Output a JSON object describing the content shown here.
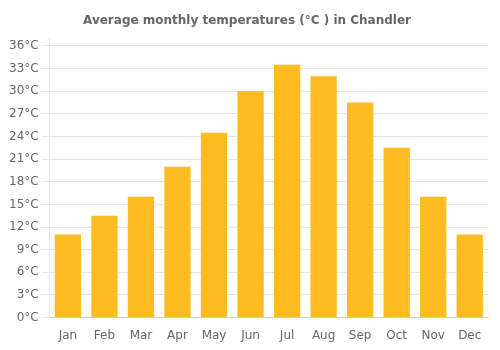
{
  "chart_data": {
    "type": "bar",
    "title": "Average monthly temperatures (°C ) in Chandler",
    "categories": [
      "Jan",
      "Feb",
      "Mar",
      "Apr",
      "May",
      "Jun",
      "Jul",
      "Aug",
      "Sep",
      "Oct",
      "Nov",
      "Dec"
    ],
    "values": [
      11,
      13.5,
      16,
      20,
      24.5,
      30,
      33.5,
      32,
      28.5,
      22.5,
      16,
      11
    ],
    "color": "#FFBB22",
    "ylim": [
      0,
      37
    ],
    "yticks": [
      {
        "value": 0,
        "label": "0°C"
      },
      {
        "value": 3,
        "label": "3°C"
      },
      {
        "value": 6,
        "label": "6°C"
      },
      {
        "value": 9,
        "label": "9°C"
      },
      {
        "value": 12,
        "label": "12°C"
      },
      {
        "value": 15,
        "label": "15°C"
      },
      {
        "value": 18,
        "label": "18°C"
      },
      {
        "value": 21,
        "label": "21°C"
      },
      {
        "value": 24,
        "label": "24°C"
      },
      {
        "value": 27,
        "label": "27°C"
      },
      {
        "value": 30,
        "label": "30°C"
      },
      {
        "value": 33,
        "label": "33°C"
      },
      {
        "value": 36,
        "label": "36°C"
      }
    ],
    "grid": true
  }
}
